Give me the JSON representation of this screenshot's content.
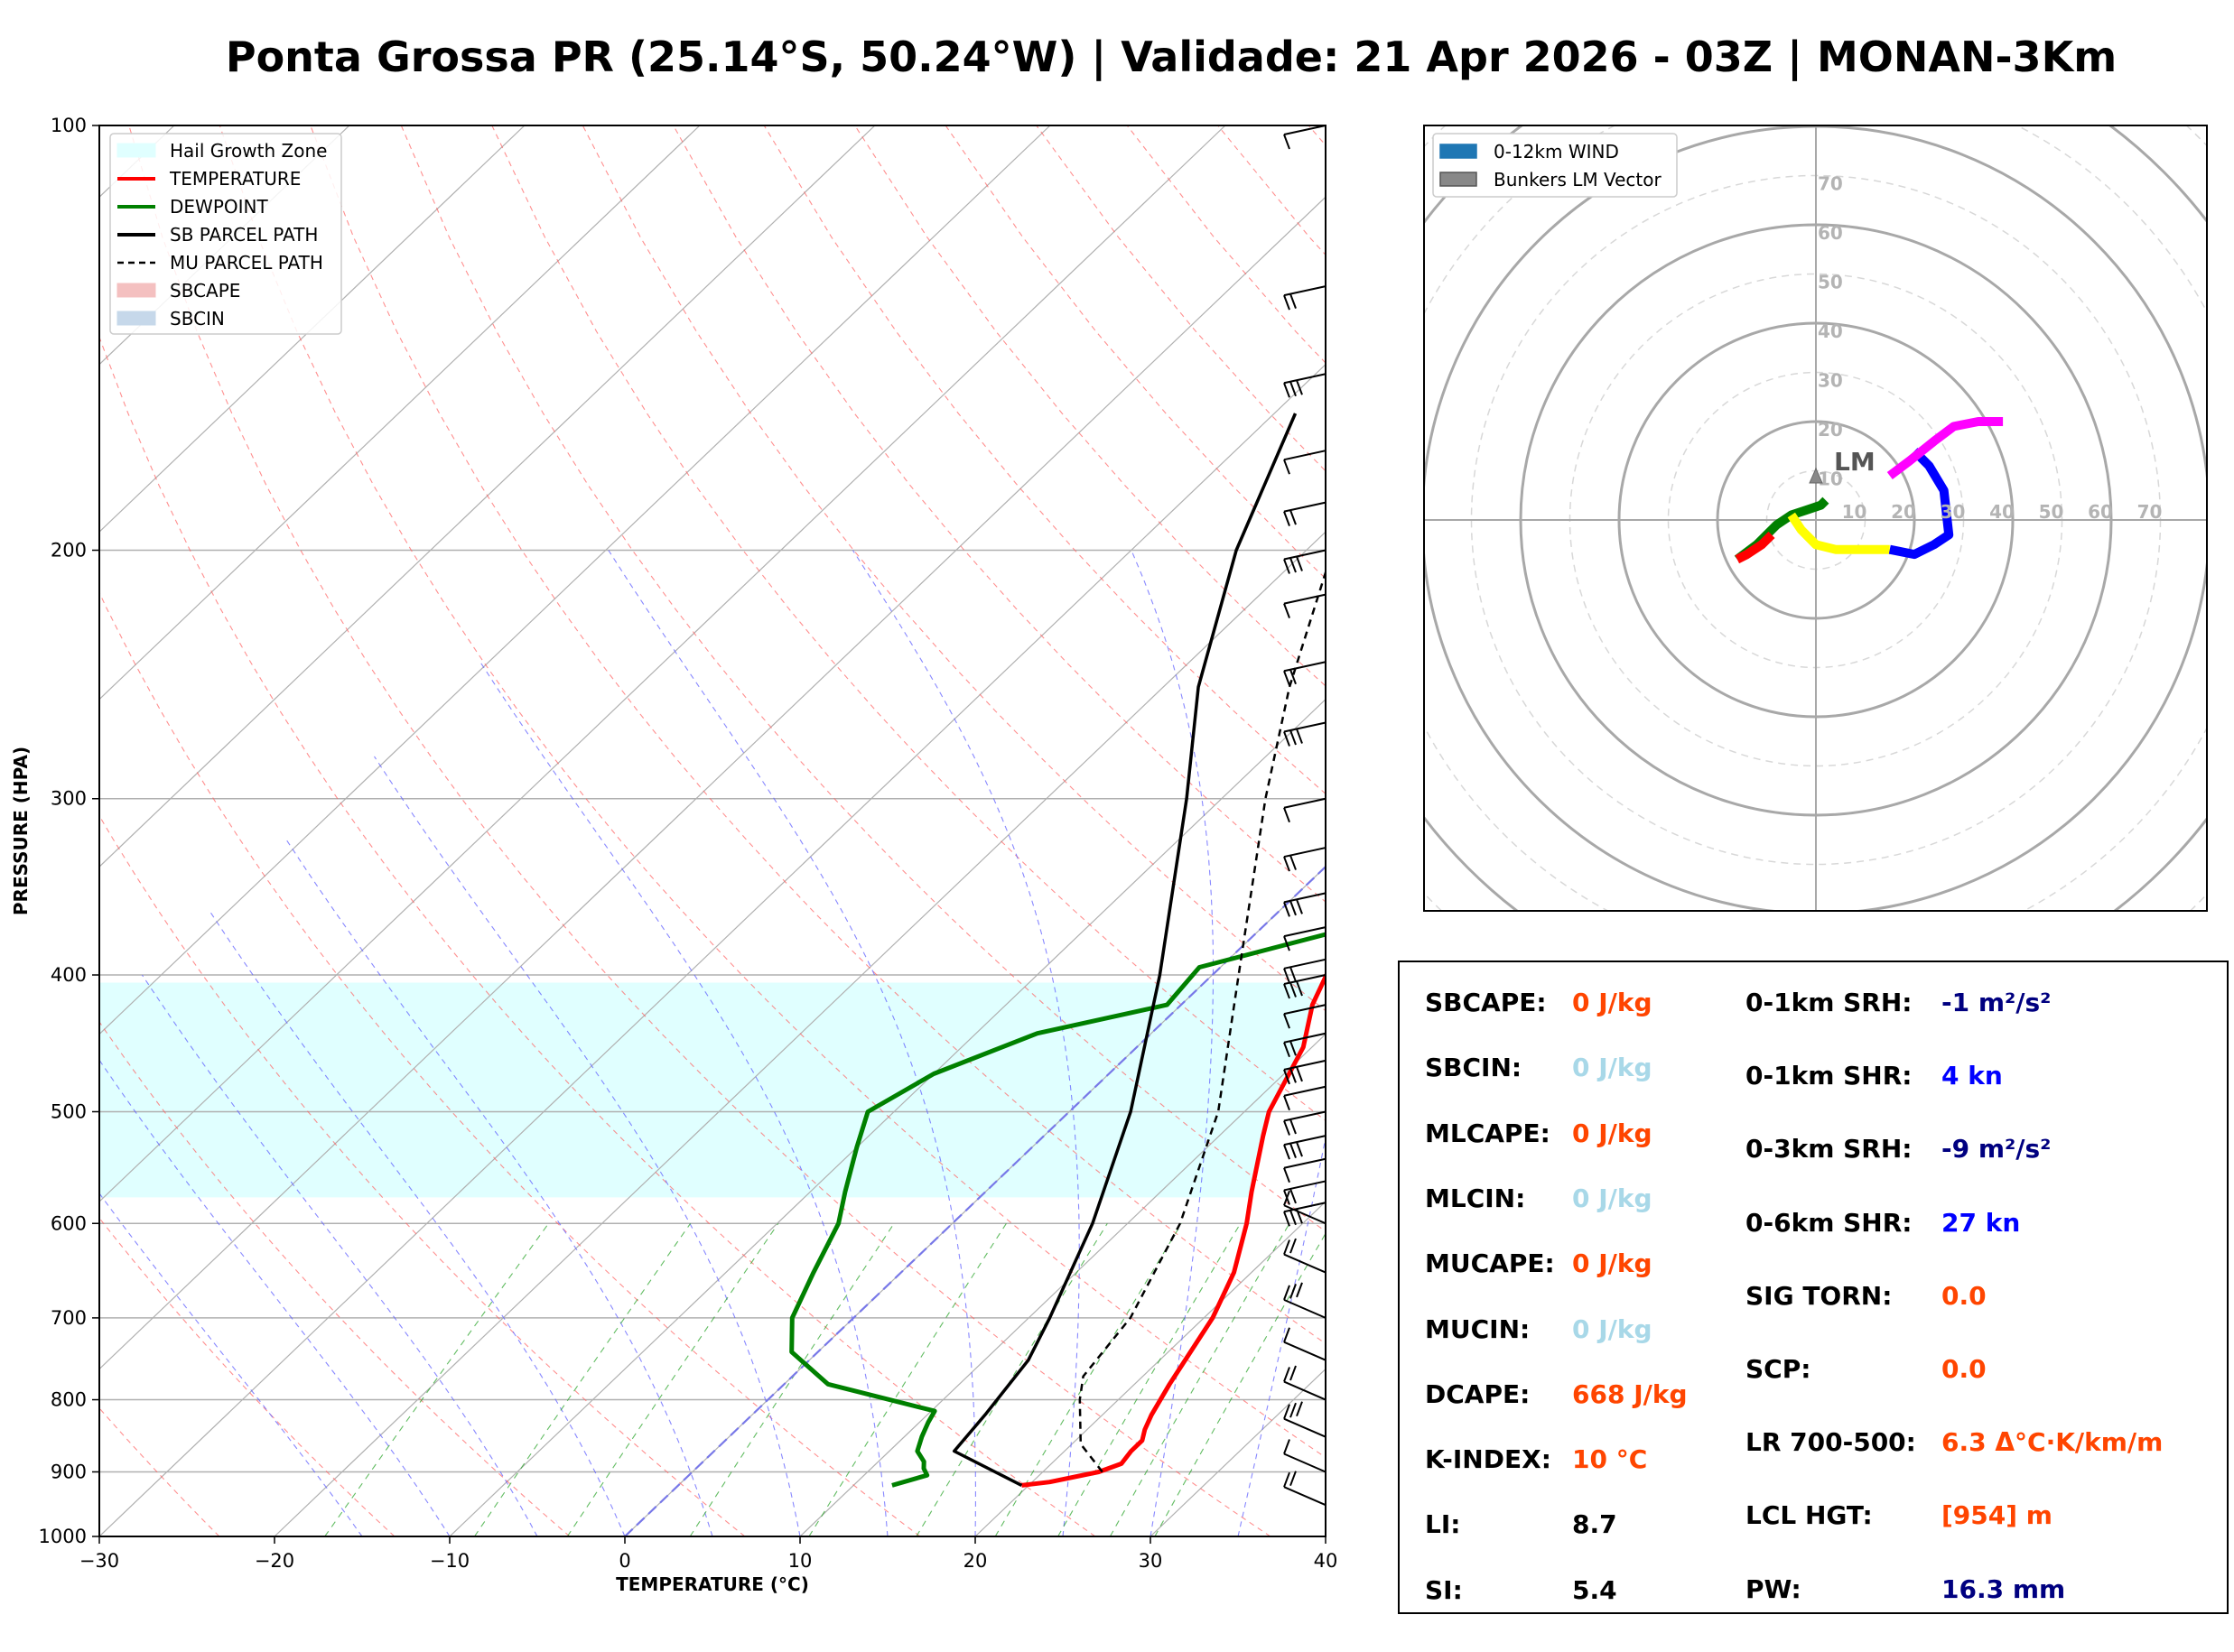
{
  "title": "Ponta Grossa PR (25.14°S, 50.24°W) | Validade: 21 Apr 2026 - 03Z | MONAN-3Km",
  "chart_data": [
    {
      "type": "line",
      "subtype": "skew-t log-p sounding",
      "xlabel": "TEMPERATURE (°C)",
      "ylabel": "PRESSURE (HPA)",
      "xlim": [
        -30,
        40
      ],
      "ylim": [
        1000,
        100
      ],
      "yscale": "log",
      "x_ticks": [
        "−30",
        "−20",
        "−10",
        "0",
        "10",
        "20",
        "30",
        "40"
      ],
      "y_ticks": [
        "100",
        "200",
        "300",
        "400",
        "500",
        "600",
        "700",
        "800",
        "900",
        "1000"
      ],
      "grid": true,
      "legend_position": "upper-left",
      "legend": [
        {
          "label": "Hail Growth Zone",
          "color": "#e0ffff",
          "kind": "patch"
        },
        {
          "label": "TEMPERATURE",
          "color": "#ff0000",
          "kind": "line"
        },
        {
          "label": "DEWPOINT",
          "color": "#008000",
          "kind": "line"
        },
        {
          "label": "SB PARCEL PATH",
          "color": "#000000",
          "kind": "line"
        },
        {
          "label": "MU PARCEL PATH",
          "color": "#000000",
          "kind": "dashed"
        },
        {
          "label": "SBCAPE",
          "color": "#f4c0c0",
          "kind": "patch"
        },
        {
          "label": "SBCIN",
          "color": "#c6d8ea",
          "kind": "patch"
        }
      ],
      "series": [
        {
          "name": "TEMPERATURE",
          "color": "#ff0000",
          "points": [
            [
              920,
              19.6
            ],
            [
              915,
              21.0
            ],
            [
              900,
              23.2
            ],
            [
              888,
              24.0
            ],
            [
              870,
              23.8
            ],
            [
              855,
              23.8
            ],
            [
              840,
              23.3
            ],
            [
              820,
              22.8
            ],
            [
              780,
              22.0
            ],
            [
              700,
              20.5
            ],
            [
              650,
              19.0
            ],
            [
              600,
              16.8
            ],
            [
              570,
              15.2
            ],
            [
              520,
              12.5
            ],
            [
              500,
              11.4
            ],
            [
              450,
              9.5
            ],
            [
              420,
              7.5
            ],
            [
              390,
              6.0
            ],
            [
              360,
              5.5
            ],
            [
              340,
              5.0
            ],
            [
              310,
              3.2
            ],
            [
              290,
              1.5
            ],
            [
              260,
              -2.0
            ],
            [
              230,
              -6.0
            ],
            [
              205,
              -9.0
            ],
            [
              185,
              -11.5
            ],
            [
              165,
              -14.0
            ],
            [
              145,
              -16.0
            ],
            [
              125,
              -14.0
            ],
            [
              108,
              -10.5
            ],
            [
              100,
              -8.0
            ]
          ]
        },
        {
          "name": "DEWPOINT",
          "color": "#008000",
          "points": [
            [
              920,
              12.2
            ],
            [
              905,
              13.6
            ],
            [
              895,
              13.0
            ],
            [
              885,
              12.6
            ],
            [
              870,
              11.6
            ],
            [
              850,
              11.0
            ],
            [
              830,
              10.5
            ],
            [
              815,
              10.2
            ],
            [
              780,
              2.5
            ],
            [
              740,
              -1.5
            ],
            [
              700,
              -3.5
            ],
            [
              650,
              -5.0
            ],
            [
              600,
              -6.5
            ],
            [
              570,
              -8.0
            ],
            [
              530,
              -10.0
            ],
            [
              500,
              -11.5
            ],
            [
              470,
              -10.0
            ],
            [
              440,
              -6.5
            ],
            [
              420,
              -0.8
            ],
            [
              395,
              -1.2
            ],
            [
              365,
              6.5
            ],
            [
              340,
              10.0
            ],
            [
              315,
              9.5
            ],
            [
              290,
              4.5
            ],
            [
              260,
              2.0
            ],
            [
              230,
              -1.5
            ],
            [
              210,
              -4.0
            ],
            [
              195,
              -5.5
            ],
            [
              170,
              -7.0
            ],
            [
              150,
              -8.5
            ],
            [
              135,
              -9.5
            ],
            [
              120,
              -10.0
            ],
            [
              108,
              -8.5
            ],
            [
              100,
              -7.0
            ]
          ]
        },
        {
          "name": "SB PARCEL PATH",
          "color": "#000000",
          "points": [
            [
              920,
              19.6
            ],
            [
              870,
              13.7
            ],
            [
              820,
              13.3
            ],
            [
              750,
              12.5
            ],
            [
              700,
              11.2
            ],
            [
              600,
              8.0
            ],
            [
              500,
              3.5
            ],
            [
              400,
              -3.0
            ],
            [
              300,
              -12.0
            ],
            [
              250,
              -18.0
            ],
            [
              200,
              -24.0
            ],
            [
              160,
              -28.8
            ]
          ]
        },
        {
          "name": "MU PARCEL PATH",
          "color": "#000000",
          "dashed": true,
          "points": [
            [
              900,
              23.4
            ],
            [
              860,
              20.5
            ],
            [
              800,
              17.8
            ],
            [
              770,
              16.6
            ],
            [
              700,
              15.8
            ],
            [
              600,
              13.0
            ],
            [
              500,
              8.5
            ],
            [
              400,
              1.5
            ],
            [
              300,
              -7.5
            ],
            [
              250,
              -12.8
            ],
            [
              200,
              -18.5
            ],
            [
              150,
              -24.5
            ],
            [
              125,
              -28.5
            ]
          ]
        }
      ],
      "hail_growth_zone_hpa": [
        405,
        575
      ],
      "wind_barbs_hpa": [
        100,
        130,
        150,
        170,
        185,
        200,
        215,
        240,
        265,
        300,
        325,
        350,
        370,
        390,
        400,
        420,
        440,
        460,
        480,
        500,
        520,
        540,
        560,
        580,
        600,
        650,
        700,
        750,
        800,
        850,
        900,
        950
      ]
    },
    {
      "type": "line",
      "subtype": "hodograph",
      "rings": [
        "10",
        "20",
        "30",
        "40",
        "50",
        "60",
        "70"
      ],
      "legend_position": "upper-left",
      "legend": [
        {
          "label": "0-12km WIND",
          "color": "#1f77b4"
        },
        {
          "label": "Bunkers LM Vector",
          "color": "#888888"
        }
      ],
      "lm_label": "LM",
      "lm_vector": [
        0,
        9
      ],
      "segments": [
        {
          "color": "#008000",
          "points": [
            [
              -16,
              -8
            ],
            [
              -12,
              -5
            ],
            [
              -8,
              -1
            ],
            [
              -5,
              1
            ],
            [
              -2,
              2
            ],
            [
              1,
              3
            ],
            [
              2,
              4
            ]
          ]
        },
        {
          "color": "#ff0000",
          "points": [
            [
              -16,
              -8
            ],
            [
              -14,
              -7
            ],
            [
              -11,
              -5
            ],
            [
              -9,
              -3
            ]
          ]
        },
        {
          "color": "#ffff00",
          "points": [
            [
              -5,
              1
            ],
            [
              -3,
              -2
            ],
            [
              0,
              -5
            ],
            [
              4,
              -6
            ],
            [
              10,
              -6
            ],
            [
              15,
              -6
            ]
          ]
        },
        {
          "color": "#0000ff",
          "points": [
            [
              15,
              -6
            ],
            [
              20,
              -7
            ],
            [
              24,
              -5
            ],
            [
              27,
              -3
            ],
            [
              26,
              6
            ],
            [
              23,
              11
            ],
            [
              20,
              14
            ]
          ]
        },
        {
          "color": "#ff00ff",
          "points": [
            [
              15,
              9
            ],
            [
              19,
              12
            ],
            [
              24,
              16
            ],
            [
              28,
              19
            ],
            [
              33,
              20
            ],
            [
              38,
              20
            ]
          ]
        }
      ]
    }
  ],
  "stats": {
    "left": [
      {
        "label": "SBCAPE:",
        "value": "0 J/kg",
        "color": "red"
      },
      {
        "label": "SBCIN:",
        "value": "0 J/kg",
        "color": "light"
      },
      {
        "label": "MLCAPE:",
        "value": "0 J/kg",
        "color": "red"
      },
      {
        "label": "MLCIN:",
        "value": "0 J/kg",
        "color": "light"
      },
      {
        "label": "MUCAPE:",
        "value": "0 J/kg",
        "color": "red"
      },
      {
        "label": "MUCIN:",
        "value": "0 J/kg",
        "color": "light"
      },
      {
        "label": "DCAPE:",
        "value": "668 J/kg",
        "color": "red"
      },
      {
        "label": "K-INDEX:",
        "value": "10 °C",
        "color": "red"
      },
      {
        "label": "LI:",
        "value": "8.7",
        "color": "black"
      },
      {
        "label": "SI:",
        "value": "5.4",
        "color": "black"
      }
    ],
    "right": [
      {
        "label": "0-1km SRH:",
        "value": "-1 m²/s²",
        "color": "navy"
      },
      {
        "label": "0-1km SHR:",
        "value": "4 kn",
        "color": "blue"
      },
      {
        "label": "0-3km SRH:",
        "value": "-9 m²/s²",
        "color": "navy"
      },
      {
        "label": "0-6km SHR:",
        "value": "27 kn",
        "color": "blue"
      },
      {
        "label": "SIG TORN:",
        "value": "0.0",
        "color": "red"
      },
      {
        "label": "SCP:",
        "value": "0.0",
        "color": "red"
      },
      {
        "label": "LR 700-500:",
        "value": "6.3 Δ°C·K/km/m",
        "color": "red"
      },
      {
        "label": "LCL HGT:",
        "value": "[954] m",
        "color": "red"
      },
      {
        "label": "PW:",
        "value": "16.3 mm",
        "color": "navy"
      }
    ]
  }
}
